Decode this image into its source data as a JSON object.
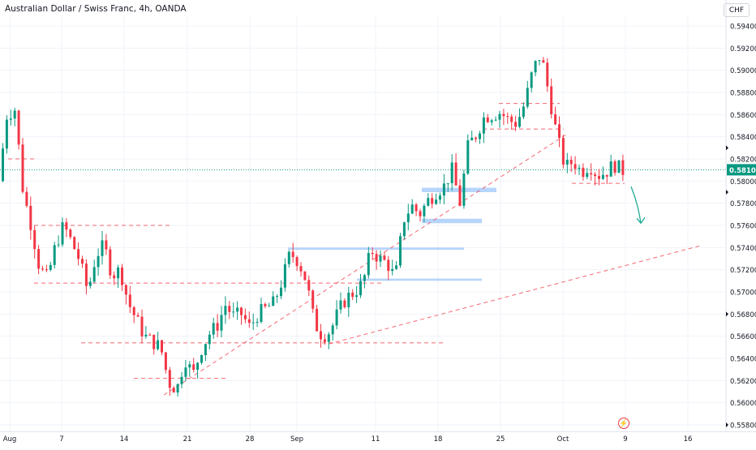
{
  "header": {
    "title": "Australian Dollar / Swiss Franc, 4h, OANDA",
    "currency": "CHF"
  },
  "colors": {
    "up": "#089981",
    "down": "#f23645",
    "level_line": "#f23645",
    "zone": "#90bff9",
    "arrow": "#22ab94",
    "last_price_bg": "#089981",
    "axis_text": "#131722"
  },
  "chart_data": {
    "type": "candlestick",
    "symbol": "AUDCHF",
    "timeframe": "4h",
    "ylim": [
      0.558,
      0.5945
    ],
    "y_ticks": [
      "0.55800",
      "0.56000",
      "0.56200",
      "0.56400",
      "0.56600",
      "0.56800",
      "0.57000",
      "0.57200",
      "0.57400",
      "0.57600",
      "0.57800",
      "0.58000",
      "0.58200",
      "0.58400",
      "0.58600",
      "0.58800",
      "0.59000",
      "0.59200",
      "0.59400"
    ],
    "x_ticks": [
      "Aug",
      "7",
      "14",
      "21",
      "28",
      "Sep",
      "11",
      "18",
      "25",
      "Oct",
      "9",
      "16"
    ],
    "last_price": "0.58102",
    "path": [
      [
        0,
        0.58
      ],
      [
        1,
        0.586
      ],
      [
        2,
        0.5865
      ],
      [
        3,
        0.579
      ],
      [
        4,
        0.576
      ],
      [
        5,
        0.5722
      ],
      [
        6,
        0.5712
      ],
      [
        7,
        0.5742
      ],
      [
        8,
        0.576
      ],
      [
        9,
        0.5745
      ],
      [
        10,
        0.5728
      ],
      [
        11,
        0.57
      ],
      [
        12,
        0.5733
      ],
      [
        13,
        0.5742
      ],
      [
        14,
        0.5715
      ],
      [
        15,
        0.572
      ],
      [
        16,
        0.569
      ],
      [
        17,
        0.5675
      ],
      [
        18,
        0.566
      ],
      [
        19,
        0.5655
      ],
      [
        20,
        0.565
      ],
      [
        21,
        0.5618
      ],
      [
        22,
        0.5612
      ],
      [
        23,
        0.564
      ],
      [
        24,
        0.5625
      ],
      [
        25,
        0.5648
      ],
      [
        26,
        0.5662
      ],
      [
        27,
        0.567
      ],
      [
        28,
        0.5688
      ],
      [
        29,
        0.5678
      ],
      [
        30,
        0.568
      ],
      [
        31,
        0.5668
      ],
      [
        32,
        0.568
      ],
      [
        33,
        0.5685
      ],
      [
        34,
        0.569
      ],
      [
        35,
        0.571
      ],
      [
        36,
        0.5735
      ],
      [
        37,
        0.5728
      ],
      [
        38,
        0.571
      ],
      [
        39,
        0.5672
      ],
      [
        40,
        0.566
      ],
      [
        41,
        0.5665
      ],
      [
        42,
        0.5683
      ],
      [
        43,
        0.5695
      ],
      [
        44,
        0.57
      ],
      [
        45,
        0.5708
      ],
      [
        46,
        0.5738
      ],
      [
        47,
        0.573
      ],
      [
        48,
        0.5726
      ],
      [
        49,
        0.5712
      ],
      [
        50,
        0.5765
      ],
      [
        51,
        0.5778
      ],
      [
        52,
        0.577
      ],
      [
        53,
        0.5782
      ],
      [
        54,
        0.579
      ],
      [
        55,
        0.5795
      ],
      [
        56,
        0.581
      ],
      [
        57,
        0.578
      ],
      [
        58,
        0.5832
      ],
      [
        59,
        0.5842
      ],
      [
        60,
        0.5858
      ],
      [
        61,
        0.586
      ],
      [
        62,
        0.5862
      ],
      [
        63,
        0.5855
      ],
      [
        64,
        0.5852
      ],
      [
        65,
        0.587
      ],
      [
        66,
        0.59
      ],
      [
        67,
        0.5915
      ],
      [
        68,
        0.5878
      ],
      [
        69,
        0.584
      ],
      [
        70,
        0.5812
      ],
      [
        71,
        0.5818
      ],
      [
        72,
        0.5808
      ],
      [
        73,
        0.5815
      ],
      [
        74,
        0.5805
      ],
      [
        75,
        0.5808
      ],
      [
        76,
        0.5815
      ],
      [
        77,
        0.581
      ]
    ],
    "horizontal_levels": [
      {
        "price": 0.582,
        "from": 10,
        "to": 45
      },
      {
        "price": 0.576,
        "from": 42,
        "to": 210
      },
      {
        "price": 0.5708,
        "from": 42,
        "to": 470
      },
      {
        "price": 0.5654,
        "from": 100,
        "to": 548
      },
      {
        "price": 0.5622,
        "from": 165,
        "to": 280
      },
      {
        "price": 0.5847,
        "from": 595,
        "to": 695
      },
      {
        "price": 0.587,
        "from": 615,
        "to": 690
      },
      {
        "price": 0.5798,
        "from": 705,
        "to": 770
      }
    ],
    "zones": [
      {
        "top": 0.5794,
        "bottom": 0.579,
        "from": 520,
        "to": 612
      },
      {
        "top": 0.5766,
        "bottom": 0.5762,
        "from": 520,
        "to": 594
      },
      {
        "top": 0.574,
        "bottom": 0.5738,
        "from": 355,
        "to": 572
      },
      {
        "top": 0.5712,
        "bottom": 0.571,
        "from": 440,
        "to": 594
      }
    ],
    "trendlines": [
      {
        "from": [
          202,
          0.5607
        ],
        "to": [
          700,
          0.5843
        ]
      },
      {
        "from": [
          405,
          0.5653
        ],
        "to": [
          865,
          0.5742
        ]
      }
    ],
    "projection_arrow": {
      "from": [
        778,
        0.5795
      ],
      "to": [
        790,
        0.5762
      ]
    }
  }
}
